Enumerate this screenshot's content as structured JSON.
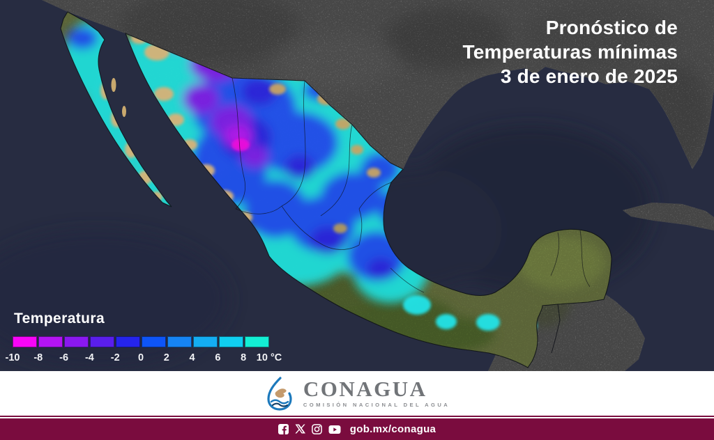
{
  "title": {
    "lines": [
      "Pronóstico de",
      "Temperaturas mínimas",
      "3 de enero de 2025"
    ]
  },
  "legend": {
    "title": "Temperatura",
    "unit": "°C",
    "ticks": [
      "-10",
      "-8",
      "-6",
      "-4",
      "-2",
      "0",
      "2",
      "4",
      "6",
      "8",
      "10 °C"
    ],
    "colors": [
      "#F705F7",
      "#B414F4",
      "#8A18F0",
      "#5A1EEC",
      "#2524EC",
      "#0E55F7",
      "#1684F4",
      "#14ADF2",
      "#10CFF0",
      "#13EFD4"
    ]
  },
  "map": {
    "type": "temperature-forecast-map",
    "region": "México",
    "ocean_color": "#272C41",
    "us_land_color": "#939393",
    "mexico_terrain_colors": [
      "#9B9569",
      "#75874A",
      "#87994F"
    ],
    "overlay_scale_min_c": -10,
    "overlay_scale_max_c": 10
  },
  "footer": {
    "brand": "CONAGUA",
    "brand_subtitle": "COMISIÓN NACIONAL DEL AGUA",
    "social_icons": [
      "facebook",
      "x",
      "instagram",
      "youtube"
    ],
    "url": "gob.mx/conagua",
    "bar_color": "#7A0C3E"
  }
}
